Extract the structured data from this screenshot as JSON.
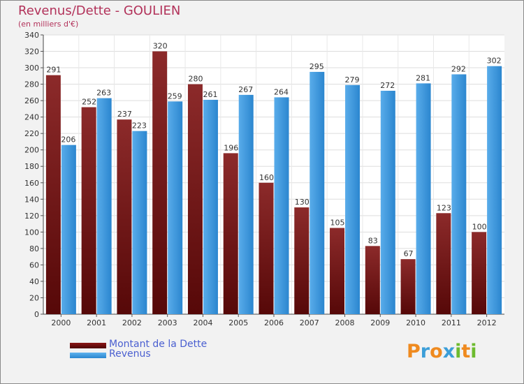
{
  "title": "Revenus/Dette - GOULIEN",
  "subtitle": "(en milliers d'€)",
  "colors": {
    "debt": "#7a1212",
    "revenue": "#2f8fd8",
    "title": "#b2325a"
  },
  "legend": [
    {
      "label": "Montant de la Dette",
      "color": "#6b0d0d"
    },
    {
      "label": "Revenus",
      "color": "#3a9be0"
    }
  ],
  "logo": {
    "text": "Proxiti",
    "letters": [
      "P",
      "r",
      "o",
      "x",
      "i",
      "t",
      "i"
    ],
    "colors": [
      "#ef8a1f",
      "#3c9ed8",
      "#ef8a1f",
      "#3c9ed8",
      "#6dbb2f",
      "#ef8a1f",
      "#6dbb2f"
    ]
  },
  "chart_data": {
    "type": "bar",
    "title": "Revenus/Dette - GOULIEN",
    "subtitle": "(en milliers d'€)",
    "categories": [
      "2000",
      "2001",
      "2002",
      "2003",
      "2004",
      "2005",
      "2006",
      "2007",
      "2008",
      "2009",
      "2010",
      "2011",
      "2012"
    ],
    "series": [
      {
        "name": "Montant de la Dette",
        "values": [
          291,
          252,
          237,
          320,
          280,
          196,
          160,
          130,
          105,
          83,
          67,
          123,
          100
        ]
      },
      {
        "name": "Revenus",
        "values": [
          206,
          263,
          223,
          259,
          261,
          267,
          264,
          295,
          279,
          272,
          281,
          292,
          302
        ]
      }
    ],
    "ylim": [
      0,
      340
    ],
    "yticks": [
      0,
      20,
      40,
      60,
      80,
      100,
      120,
      140,
      160,
      180,
      200,
      220,
      240,
      260,
      280,
      300,
      320,
      340
    ],
    "grid": true,
    "legend_position": "bottom-left"
  }
}
